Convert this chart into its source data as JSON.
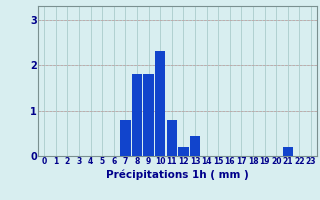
{
  "values": [
    0,
    0,
    0,
    0,
    0,
    0,
    0,
    0.8,
    1.8,
    1.8,
    2.3,
    0.8,
    0.2,
    0.45,
    0,
    0,
    0,
    0,
    0,
    0,
    0,
    0.2,
    0,
    0
  ],
  "categories": [
    0,
    1,
    2,
    3,
    4,
    5,
    6,
    7,
    8,
    9,
    10,
    11,
    12,
    13,
    14,
    15,
    16,
    17,
    18,
    19,
    20,
    21,
    22,
    23
  ],
  "bar_color": "#1144cc",
  "background_color": "#d8eef0",
  "grid_color": "#aacccc",
  "xlabel": "Précipitations 1h ( mm )",
  "xlabel_color": "#00008b",
  "xlabel_fontsize": 7.5,
  "tick_color": "#00008b",
  "tick_fontsize": 5.5,
  "ytick_fontsize": 7,
  "ytick_values": [
    0,
    1,
    2,
    3
  ],
  "ylim": [
    0,
    3.3
  ],
  "xlim": [
    -0.5,
    23.5
  ],
  "axis_color": "#9ab0b0",
  "spine_color": "#7a9090"
}
